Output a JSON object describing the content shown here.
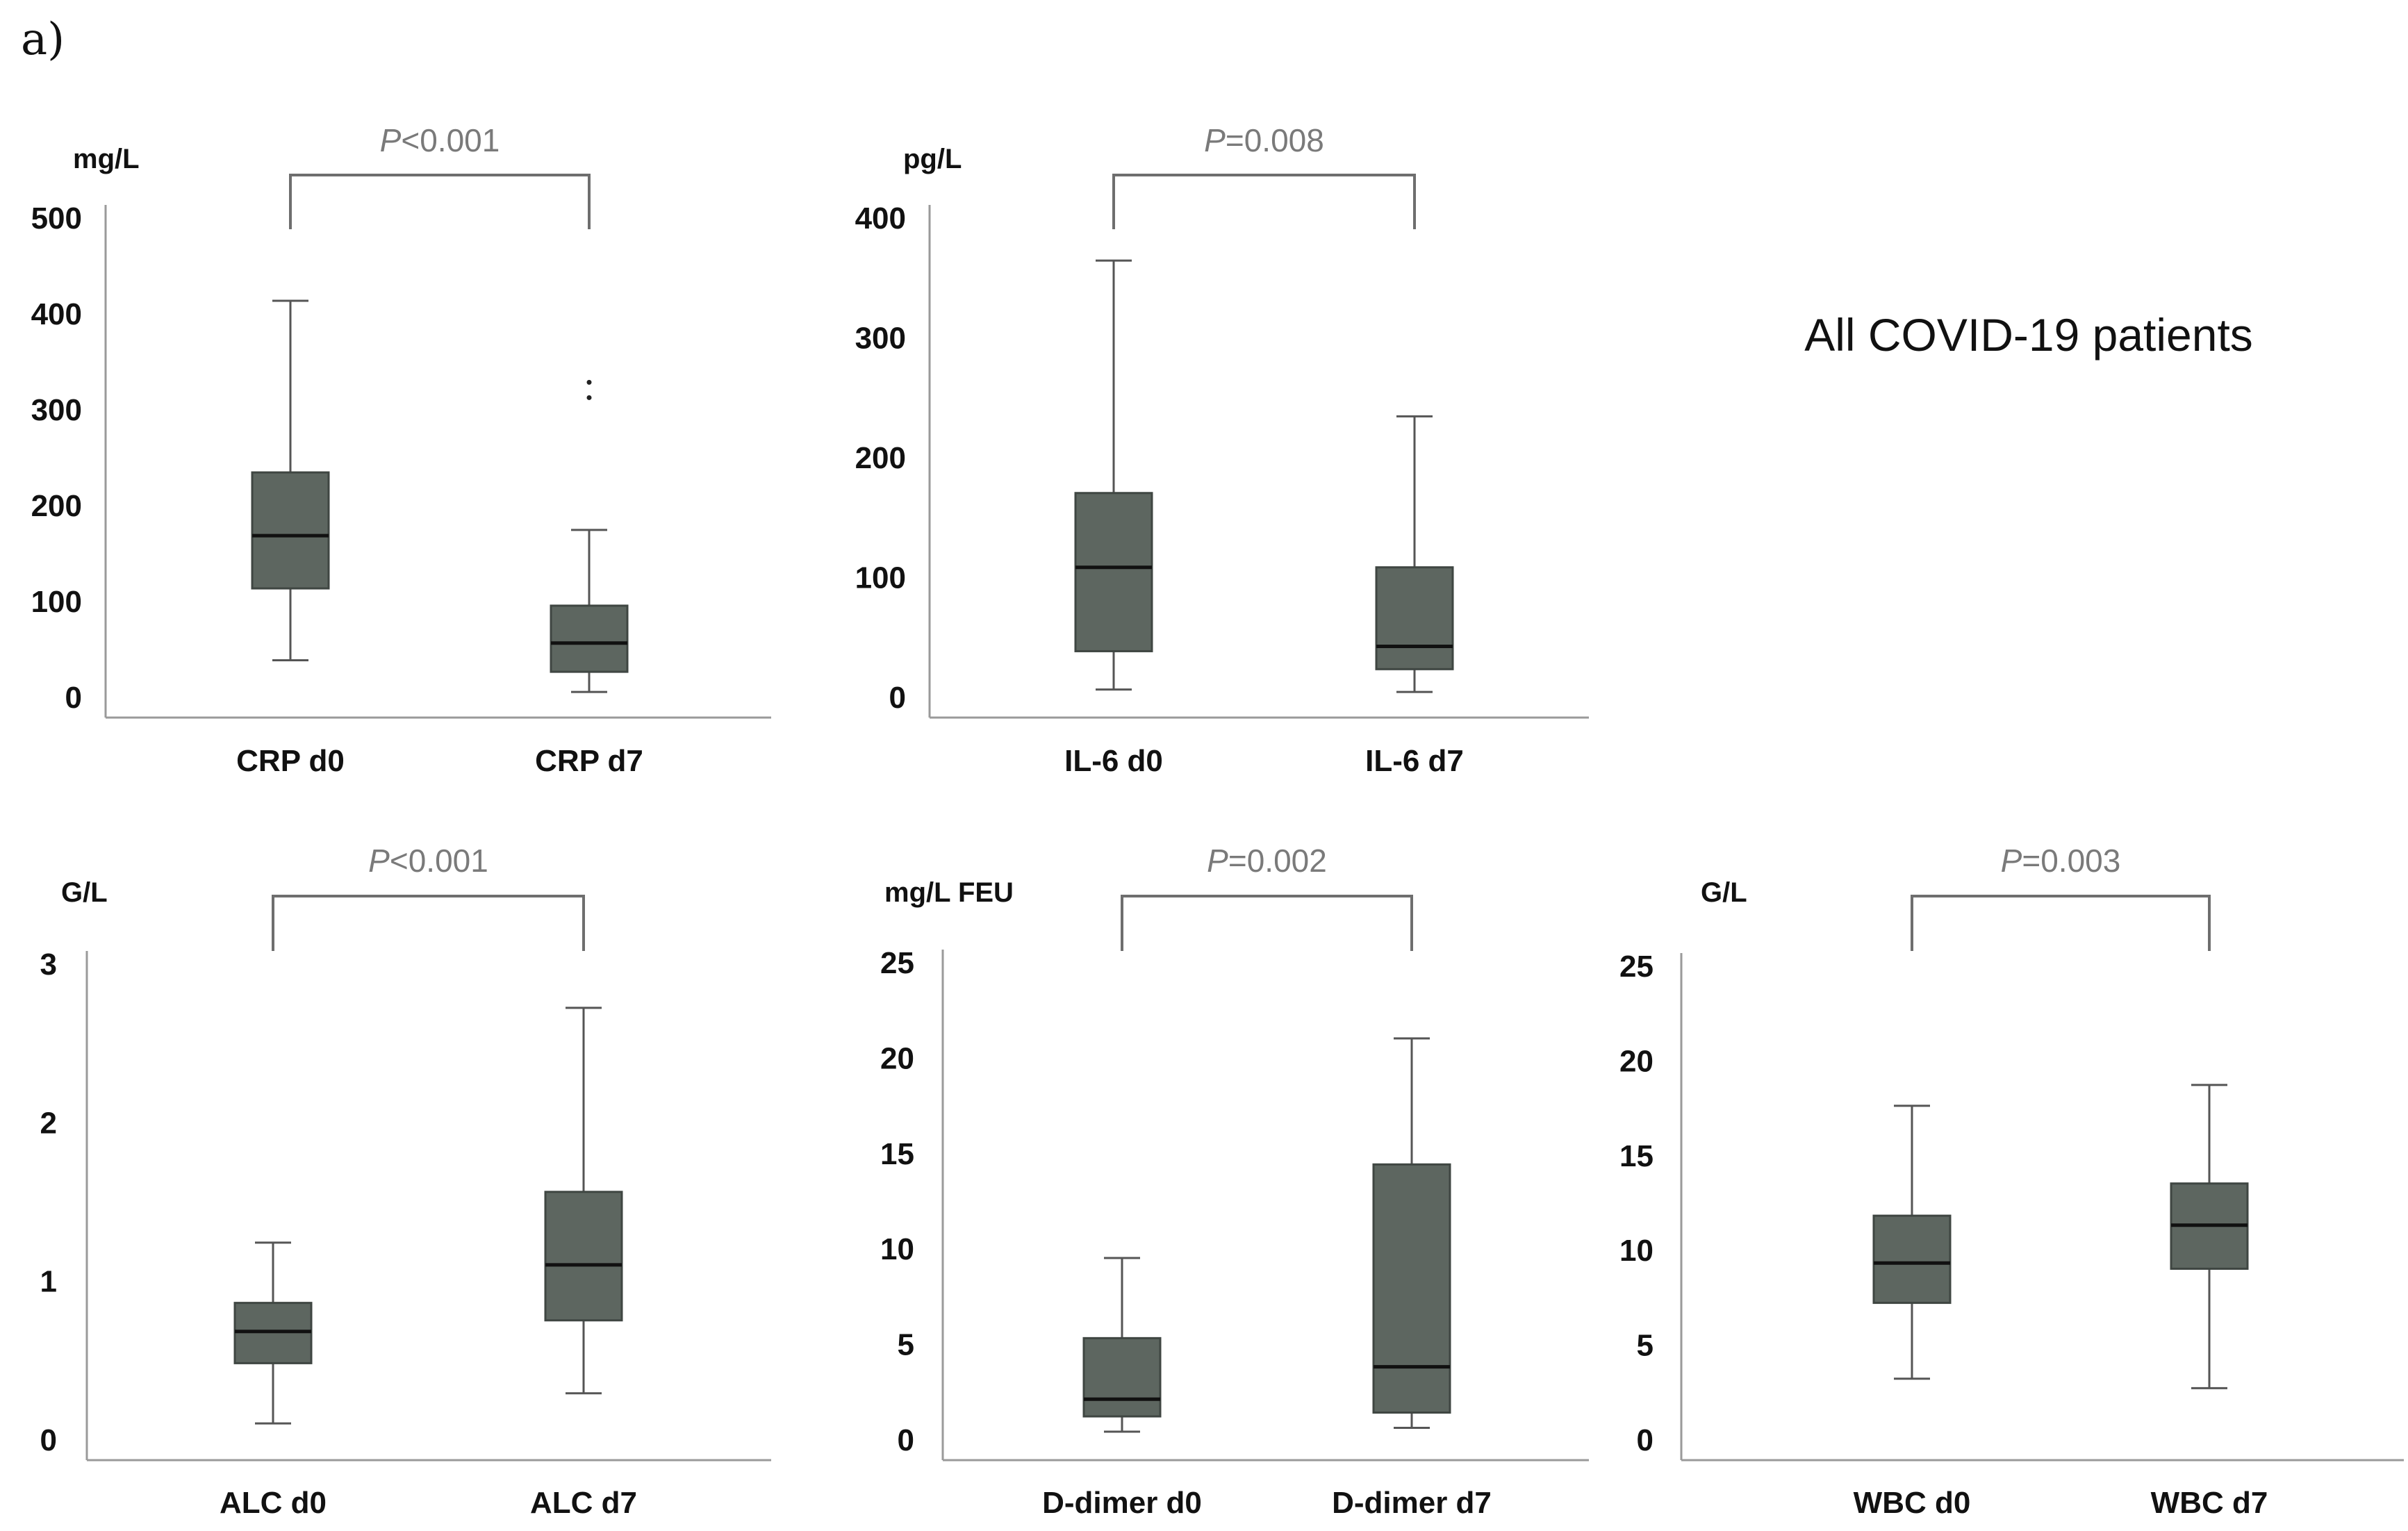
{
  "panel_label": "a)",
  "group_title": "All COVID-19 patients",
  "colors": {
    "box": "#5d6660",
    "median": "#111111",
    "axis": "#9a9a9a",
    "pvalue": "#7a7a7a"
  },
  "chart_data": [
    {
      "type": "box",
      "ylabel": "mg/L",
      "ylim": [
        0,
        500
      ],
      "yticks": [
        0,
        100,
        200,
        300,
        400,
        500
      ],
      "pvalue": {
        "symbol": "P",
        "text": "<0.001"
      },
      "categories": [
        "CRP d0",
        "CRP d7"
      ],
      "boxes": [
        {
          "min": 38,
          "q1": 113,
          "median": 168,
          "q3": 234,
          "max": 413,
          "outliers": []
        },
        {
          "min": 5,
          "q1": 26,
          "median": 56,
          "q3": 95,
          "max": 174,
          "outliers": [
            312,
            328
          ]
        }
      ]
    },
    {
      "type": "box",
      "ylabel": "pg/L",
      "ylim": [
        0,
        400
      ],
      "yticks": [
        0,
        100,
        200,
        300,
        400
      ],
      "pvalue": {
        "symbol": "P",
        "text": "=0.008"
      },
      "categories": [
        "IL-6 d0",
        "IL-6 d7"
      ],
      "boxes": [
        {
          "min": 6,
          "q1": 38,
          "median": 108,
          "q3": 170,
          "max": 364,
          "outliers": []
        },
        {
          "min": 4,
          "q1": 23,
          "median": 42,
          "q3": 108,
          "max": 234,
          "outliers": []
        }
      ]
    },
    {
      "type": "box",
      "ylabel": "G/L",
      "ylim": [
        0,
        3
      ],
      "yticks": [
        0,
        1,
        2,
        3
      ],
      "pvalue": {
        "symbol": "P",
        "text": "<0.001"
      },
      "categories": [
        "ALC d0",
        "ALC d7"
      ],
      "boxes": [
        {
          "min": 0.1,
          "q1": 0.48,
          "median": 0.68,
          "q3": 0.86,
          "max": 1.24,
          "outliers": []
        },
        {
          "min": 0.29,
          "q1": 0.75,
          "median": 1.1,
          "q3": 1.56,
          "max": 2.72,
          "outliers": []
        }
      ]
    },
    {
      "type": "box",
      "ylabel": "mg/L FEU",
      "ylim": [
        0,
        25
      ],
      "yticks": [
        0,
        5,
        10,
        15,
        20,
        25
      ],
      "pvalue": {
        "symbol": "P",
        "text": "=0.002"
      },
      "categories": [
        "D-dimer d0",
        "D-dimer d7"
      ],
      "boxes": [
        {
          "min": 0.4,
          "q1": 1.2,
          "median": 2.1,
          "q3": 5.3,
          "max": 9.5,
          "outliers": []
        },
        {
          "min": 0.6,
          "q1": 1.4,
          "median": 3.8,
          "q3": 14.4,
          "max": 21.0,
          "outliers": []
        }
      ]
    },
    {
      "type": "box",
      "ylabel": "G/L",
      "ylim": [
        0,
        25
      ],
      "yticks": [
        0,
        5,
        10,
        15,
        20,
        25
      ],
      "pvalue": {
        "symbol": "P",
        "text": "=0.003"
      },
      "categories": [
        "WBC d0",
        "WBC d7"
      ],
      "boxes": [
        {
          "min": 3.2,
          "q1": 7.2,
          "median": 9.3,
          "q3": 11.8,
          "max": 17.6,
          "outliers": []
        },
        {
          "min": 2.7,
          "q1": 9.0,
          "median": 11.3,
          "q3": 13.5,
          "max": 18.7,
          "outliers": []
        }
      ]
    }
  ]
}
